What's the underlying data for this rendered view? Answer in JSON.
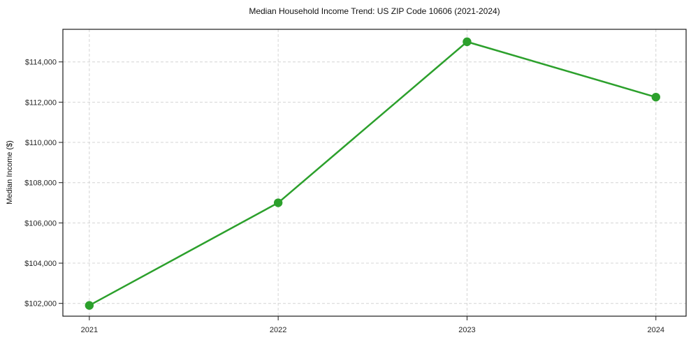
{
  "chart_data": {
    "type": "line",
    "title": "Median Household Income Trend: US ZIP Code 10606 (2021-2024)",
    "xlabel": "",
    "ylabel": "Median Income ($)",
    "categories": [
      2021,
      2022,
      2023,
      2024
    ],
    "x_tick_labels": [
      "2021",
      "2022",
      "2023",
      "2024"
    ],
    "series": [
      {
        "name": "Median Income ($)",
        "values": [
          101900,
          107000,
          115000,
          112250
        ]
      }
    ],
    "y_ticks": [
      102000,
      104000,
      106000,
      108000,
      110000,
      112000,
      114000
    ],
    "y_tick_labels": [
      "$102,000",
      "$104,000",
      "$106,000",
      "$108,000",
      "$110,000",
      "$112,000",
      "$114,000"
    ],
    "xlim": [
      2020.86,
      2024.16
    ],
    "ylim": [
      101365,
      115620
    ],
    "grid": true,
    "grid_style": "dashed",
    "legend_position": "none",
    "line_color": "#2ca02c",
    "marker_color": "#2ca02c",
    "marker_shape": "circle",
    "grid_color": "#d4d4d4",
    "axis_color": "#1a1a1a",
    "tick_label_color": "#262626",
    "background_color": "#ffffff"
  }
}
